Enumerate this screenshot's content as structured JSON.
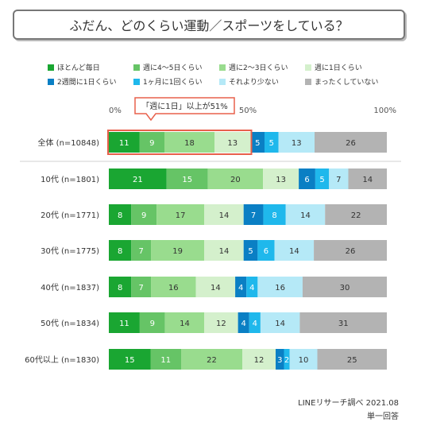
{
  "title": "ふだん、どのくらい運動／スポーツをしている？",
  "callout": "「週に1日」以上が51%",
  "source": "LINEリサーチ調べ 2021.08",
  "note": "単一回答",
  "chart_data": {
    "type": "bar",
    "orientation": "horizontal",
    "stacked": true,
    "xlim": [
      0,
      100
    ],
    "xticks": [
      "0%",
      "50%",
      "100%"
    ],
    "grid": false,
    "legend_position": "top",
    "categories": [
      "全体 (n=10848)",
      "10代 (n=1801)",
      "20代 (n=1771)",
      "30代 (n=1775)",
      "40代 (n=1837)",
      "50代 (n=1834)",
      "60代以上 (n=1830)"
    ],
    "series": [
      {
        "name": "ほとんど毎日",
        "color": "#1aa632",
        "values": [
          11,
          21,
          8,
          8,
          8,
          11,
          15
        ]
      },
      {
        "name": "週に4～5日くらい",
        "color": "#66c466",
        "values": [
          9,
          15,
          9,
          7,
          7,
          9,
          11
        ]
      },
      {
        "name": "週に2～3日くらい",
        "color": "#99dc8e",
        "values": [
          18,
          20,
          17,
          19,
          16,
          14,
          22
        ]
      },
      {
        "name": "週に1日くらい",
        "color": "#d4f0cc",
        "values": [
          13,
          13,
          14,
          14,
          14,
          12,
          12
        ]
      },
      {
        "name": "2週間に1日くらい",
        "color": "#0a7fc4",
        "values": [
          5,
          6,
          7,
          5,
          4,
          4,
          3
        ]
      },
      {
        "name": "1ヶ月に1回くらい",
        "color": "#1fb8ec",
        "values": [
          5,
          5,
          8,
          6,
          4,
          4,
          2
        ]
      },
      {
        "name": "それより少ない",
        "color": "#b5e9f7",
        "values": [
          13,
          7,
          14,
          14,
          16,
          14,
          10
        ]
      },
      {
        "name": "まったくしていない",
        "color": "#b3b3b3",
        "values": [
          26,
          14,
          22,
          26,
          30,
          31,
          25
        ]
      }
    ]
  }
}
